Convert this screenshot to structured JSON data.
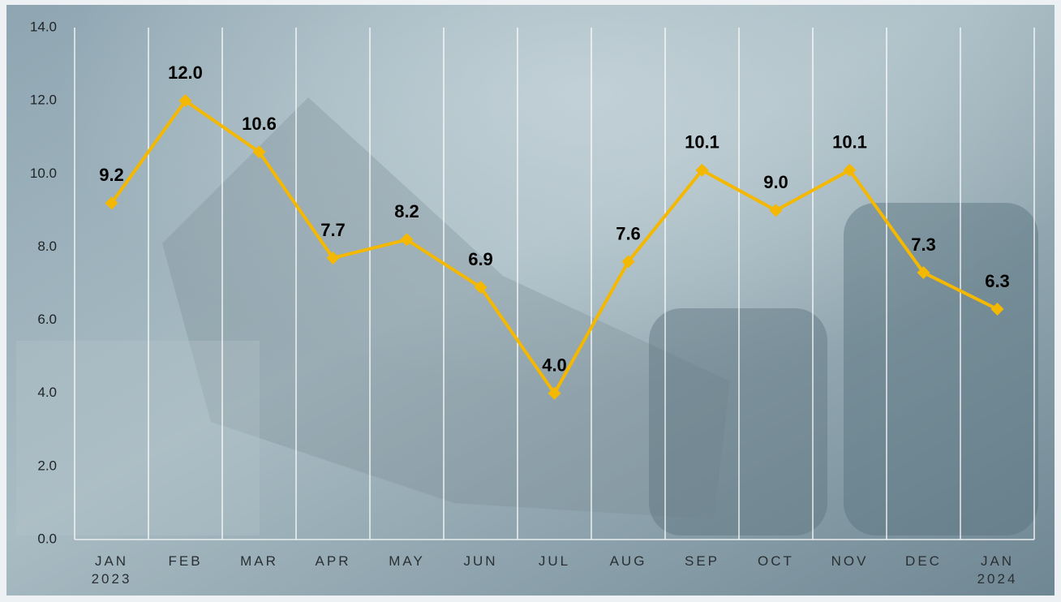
{
  "chart_data": {
    "type": "line",
    "categories": [
      "JAN\n2023",
      "FEB",
      "MAR",
      "APR",
      "MAY",
      "JUN",
      "JUL",
      "AUG",
      "SEP",
      "OCT",
      "NOV",
      "DEC",
      "JAN\n2024"
    ],
    "values": [
      9.2,
      12.0,
      10.6,
      7.7,
      8.2,
      6.9,
      4.0,
      7.6,
      10.1,
      9.0,
      10.1,
      7.3,
      6.3
    ],
    "value_labels": [
      "9.2",
      "12.0",
      "10.6",
      "7.7",
      "8.2",
      "6.9",
      "4.0",
      "7.6",
      "10.1",
      "9.0",
      "10.1",
      "7.3",
      "6.3"
    ],
    "color": "#f5b800",
    "ylim": [
      0,
      14
    ],
    "yticks": [
      {
        "value": 0,
        "label": "0.0"
      },
      {
        "value": 2,
        "label": "2.0"
      },
      {
        "value": 4,
        "label": "4.0"
      },
      {
        "value": 6,
        "label": "6.0"
      },
      {
        "value": 8,
        "label": "8.0"
      },
      {
        "value": 10,
        "label": "10.0"
      },
      {
        "value": 12,
        "label": "12.0"
      },
      {
        "value": 14,
        "label": "14.0"
      }
    ]
  }
}
